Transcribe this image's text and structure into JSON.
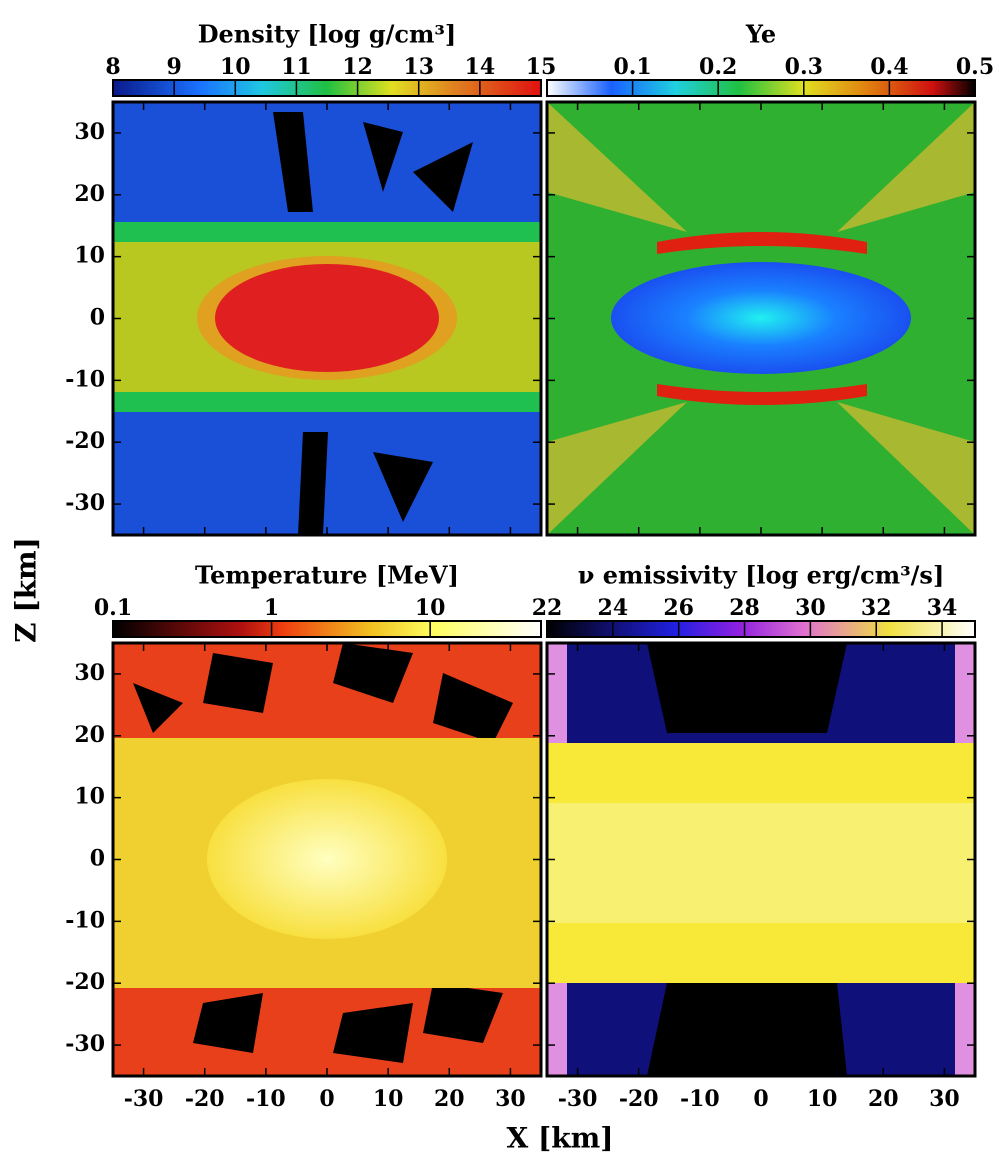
{
  "chart_data": [
    {
      "type": "heatmap",
      "title": "Density [log g/cm³]",
      "xlim": [
        -35,
        35
      ],
      "ylim": [
        -35,
        35
      ],
      "xticks": [
        -30,
        -20,
        -10,
        0,
        10,
        20,
        30
      ],
      "yticks": [
        -30,
        -20,
        -10,
        0,
        10,
        20,
        30
      ],
      "colorbar": {
        "clim": [
          8,
          15
        ],
        "ticks": [
          8,
          9,
          10,
          11,
          12,
          13,
          14,
          15
        ],
        "log": false
      }
    },
    {
      "type": "heatmap",
      "title": "Ye",
      "xlim": [
        -35,
        35
      ],
      "ylim": [
        -35,
        35
      ],
      "xticks": [
        -30,
        -20,
        -10,
        0,
        10,
        20,
        30
      ],
      "yticks": [
        -30,
        -20,
        -10,
        0,
        10,
        20,
        30
      ],
      "colorbar": {
        "clim": [
          0,
          0.5
        ],
        "ticks": [
          0.1,
          0.2,
          0.3,
          0.4,
          0.5
        ],
        "log": false
      }
    },
    {
      "type": "heatmap",
      "title": "Temperature [MeV]",
      "xlim": [
        -35,
        35
      ],
      "ylim": [
        -35,
        35
      ],
      "xticks": [
        -30,
        -20,
        -10,
        0,
        10,
        20,
        30
      ],
      "yticks": [
        -30,
        -20,
        -10,
        0,
        10,
        20,
        30
      ],
      "colorbar": {
        "clim": [
          0.1,
          50
        ],
        "ticks": [
          0.1,
          1,
          10
        ],
        "log": true
      }
    },
    {
      "type": "heatmap",
      "title": "ν emissivity [log erg/cm³/s]",
      "xlim": [
        -35,
        35
      ],
      "ylim": [
        -35,
        35
      ],
      "xticks": [
        -30,
        -20,
        -10,
        0,
        10,
        20,
        30
      ],
      "yticks": [
        -30,
        -20,
        -10,
        0,
        10,
        20,
        30
      ],
      "colorbar": {
        "clim": [
          22,
          35
        ],
        "ticks": [
          22,
          24,
          26,
          28,
          30,
          32,
          34
        ],
        "log": false
      }
    }
  ],
  "x_label": "X [km]",
  "y_label": "Z [km]"
}
